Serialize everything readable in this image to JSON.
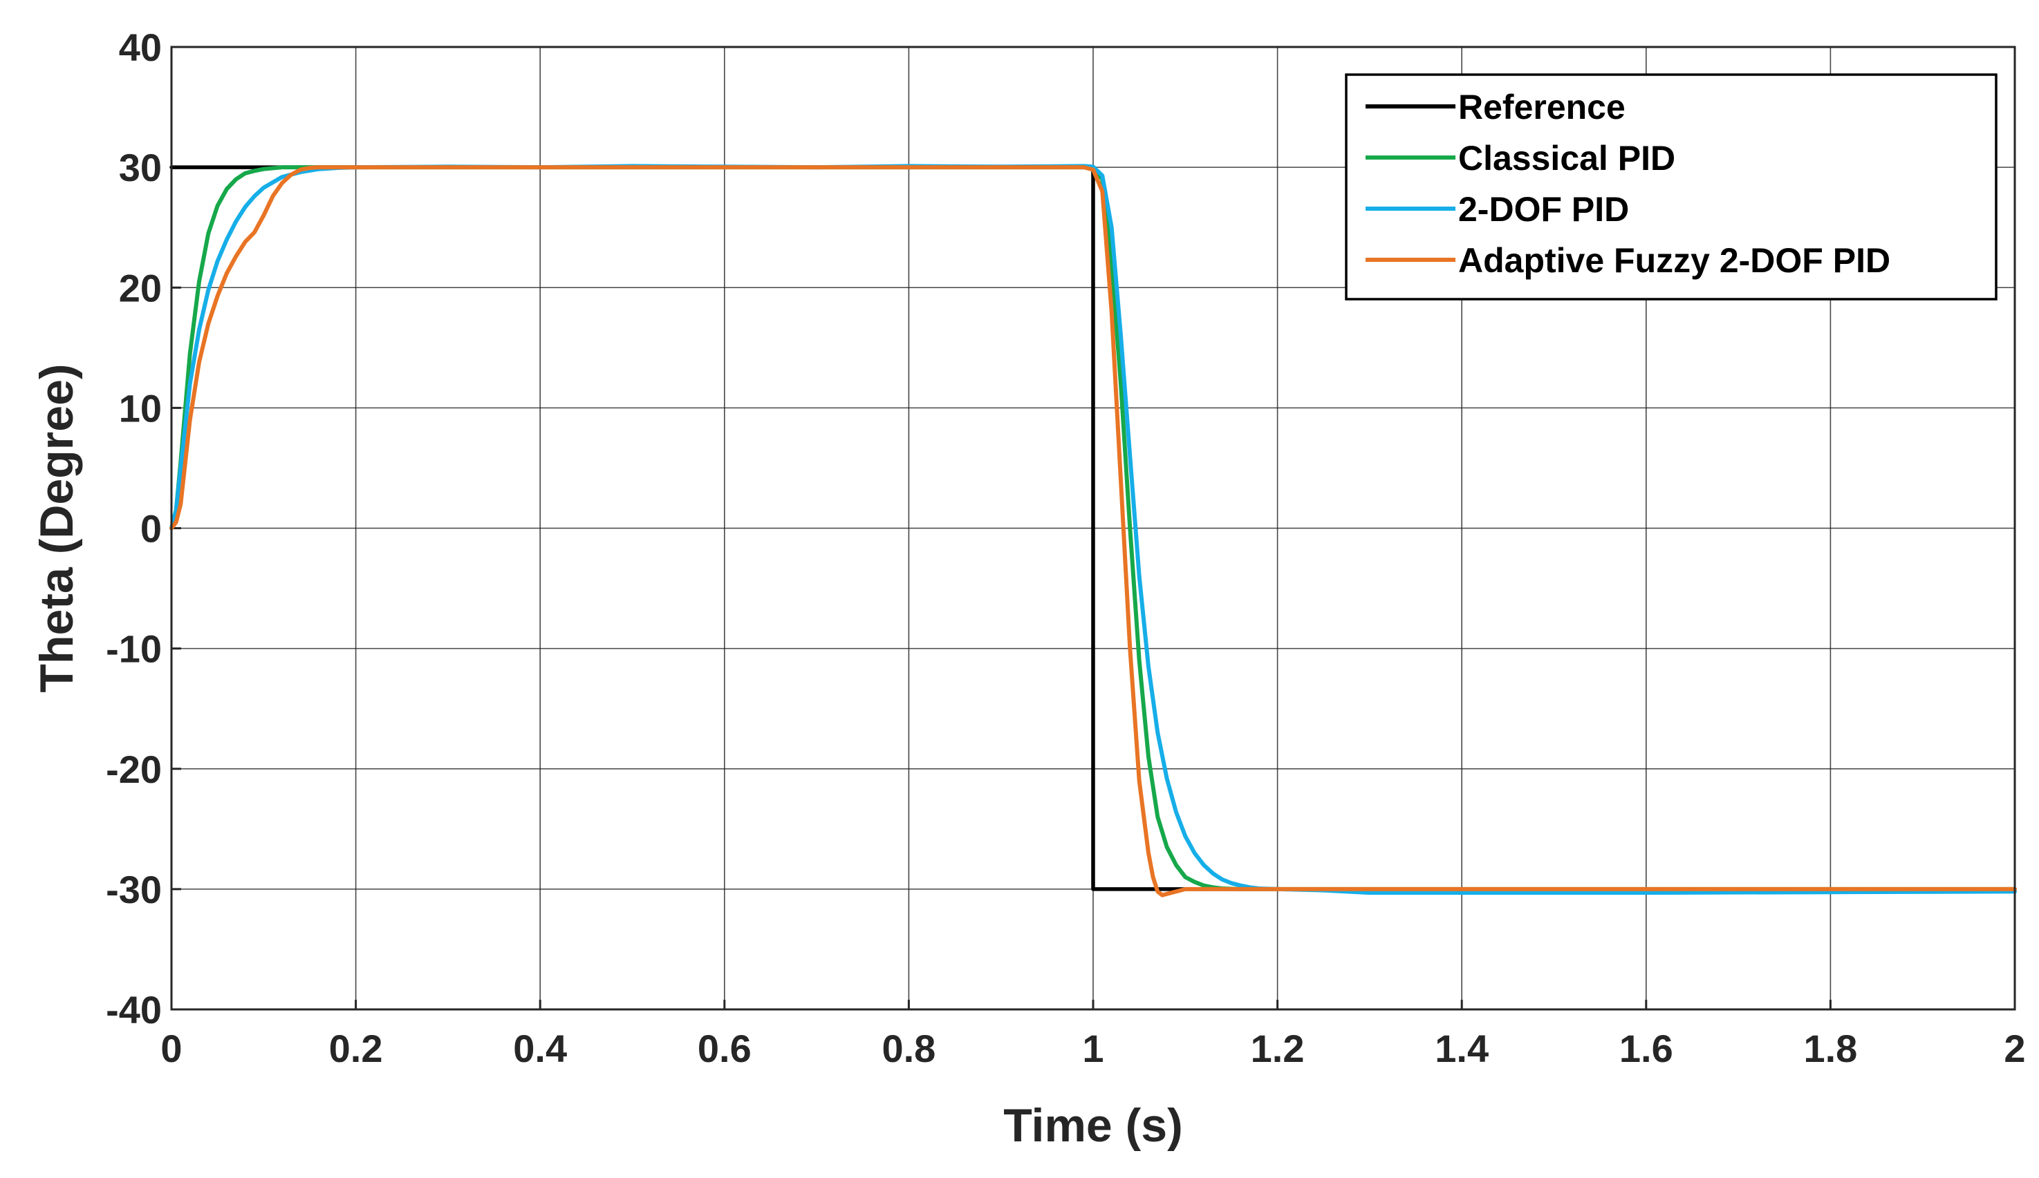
{
  "chart_data": {
    "type": "line",
    "title": "",
    "xlabel": "Time (s)",
    "ylabel": "Theta (Degree)",
    "xlim": [
      0,
      2
    ],
    "ylim": [
      -40,
      40
    ],
    "grid": true,
    "legend_position": "top-right",
    "xticks": [
      0,
      0.2,
      0.4,
      0.6,
      0.8,
      1,
      1.2,
      1.4,
      1.6,
      1.8,
      2
    ],
    "xtick_labels": [
      "0",
      "0.2",
      "0.4",
      "0.6",
      "0.8",
      "1",
      "1.2",
      "1.4",
      "1.6",
      "1.8",
      "2"
    ],
    "yticks": [
      -40,
      -30,
      -20,
      -10,
      0,
      10,
      20,
      30,
      40
    ],
    "ytick_labels": [
      "-40",
      "-30",
      "-20",
      "-10",
      "0",
      "10",
      "20",
      "30",
      "40"
    ],
    "series": [
      {
        "name": "Reference",
        "color": "#000000",
        "x": [
          0,
          1.0,
          1.0,
          2.0
        ],
        "y": [
          30,
          30,
          -30,
          -30
        ]
      },
      {
        "name": "Classical PID",
        "color": "#16a84a",
        "x": [
          0,
          0.005,
          0.01,
          0.02,
          0.03,
          0.04,
          0.05,
          0.06,
          0.07,
          0.08,
          0.09,
          0.1,
          0.12,
          0.14,
          0.16,
          0.2,
          0.4,
          0.6,
          0.8,
          0.99,
          1.0,
          1.01,
          1.02,
          1.03,
          1.04,
          1.05,
          1.06,
          1.07,
          1.08,
          1.09,
          1.1,
          1.11,
          1.12,
          1.13,
          1.14,
          1.16,
          1.2,
          1.4,
          1.6,
          1.8,
          2.0
        ],
        "y": [
          0,
          1.5,
          5.5,
          14.5,
          20.5,
          24.5,
          26.8,
          28.2,
          29.0,
          29.5,
          29.7,
          29.85,
          30.0,
          30.0,
          30.0,
          30.0,
          30.0,
          30.0,
          30.0,
          30.0,
          30.0,
          29.0,
          22.0,
          12.0,
          0.0,
          -11.0,
          -19.0,
          -24.0,
          -26.5,
          -28.0,
          -29.0,
          -29.4,
          -29.7,
          -29.85,
          -29.95,
          -30.0,
          -30.0,
          -30.0,
          -30.0,
          -30.0,
          -30.0
        ]
      },
      {
        "name": "2-DOF PID",
        "color": "#16aee8",
        "x": [
          0,
          0.005,
          0.01,
          0.02,
          0.03,
          0.04,
          0.05,
          0.06,
          0.07,
          0.08,
          0.09,
          0.1,
          0.12,
          0.14,
          0.16,
          0.18,
          0.2,
          0.3,
          0.4,
          0.5,
          0.6,
          0.7,
          0.8,
          0.9,
          0.99,
          1.0,
          1.01,
          1.02,
          1.03,
          1.04,
          1.05,
          1.06,
          1.07,
          1.08,
          1.09,
          1.1,
          1.11,
          1.12,
          1.13,
          1.14,
          1.15,
          1.16,
          1.17,
          1.18,
          1.2,
          1.25,
          1.3,
          1.4,
          1.6,
          1.8,
          2.0
        ],
        "y": [
          0,
          1.5,
          5.0,
          12.0,
          16.5,
          19.8,
          22.2,
          24.0,
          25.5,
          26.7,
          27.6,
          28.3,
          29.2,
          29.6,
          29.85,
          29.95,
          30.0,
          30.05,
          30.0,
          30.1,
          30.05,
          30.0,
          30.1,
          30.05,
          30.1,
          30.05,
          29.3,
          25.0,
          16.0,
          6.0,
          -4.0,
          -11.5,
          -17.0,
          -20.8,
          -23.6,
          -25.6,
          -27.0,
          -28.0,
          -28.7,
          -29.2,
          -29.5,
          -29.7,
          -29.85,
          -29.95,
          -30.0,
          -30.1,
          -30.3,
          -30.3,
          -30.3,
          -30.25,
          -30.2
        ]
      },
      {
        "name": "Adaptive Fuzzy 2-DOF PID",
        "color": "#e87424",
        "x": [
          0,
          0.005,
          0.01,
          0.02,
          0.03,
          0.04,
          0.05,
          0.06,
          0.07,
          0.08,
          0.09,
          0.1,
          0.11,
          0.12,
          0.13,
          0.14,
          0.15,
          0.16,
          0.2,
          0.4,
          0.6,
          0.8,
          0.99,
          1.0,
          1.01,
          1.02,
          1.03,
          1.04,
          1.05,
          1.06,
          1.065,
          1.07,
          1.075,
          1.08,
          1.09,
          1.1,
          1.12,
          1.2,
          1.4,
          1.6,
          1.8,
          2.0
        ],
        "y": [
          0,
          0.5,
          2.0,
          9.0,
          13.8,
          17.0,
          19.3,
          21.2,
          22.6,
          23.8,
          24.6,
          26.0,
          27.6,
          28.7,
          29.4,
          29.8,
          29.95,
          30.0,
          30.0,
          30.0,
          30.0,
          30.0,
          30.0,
          29.8,
          28.0,
          18.0,
          4.0,
          -10.0,
          -21.0,
          -27.0,
          -29.0,
          -30.2,
          -30.5,
          -30.4,
          -30.2,
          -30.0,
          -30.0,
          -30.0,
          -30.0,
          -30.0,
          -30.0,
          -30.0
        ]
      }
    ]
  }
}
